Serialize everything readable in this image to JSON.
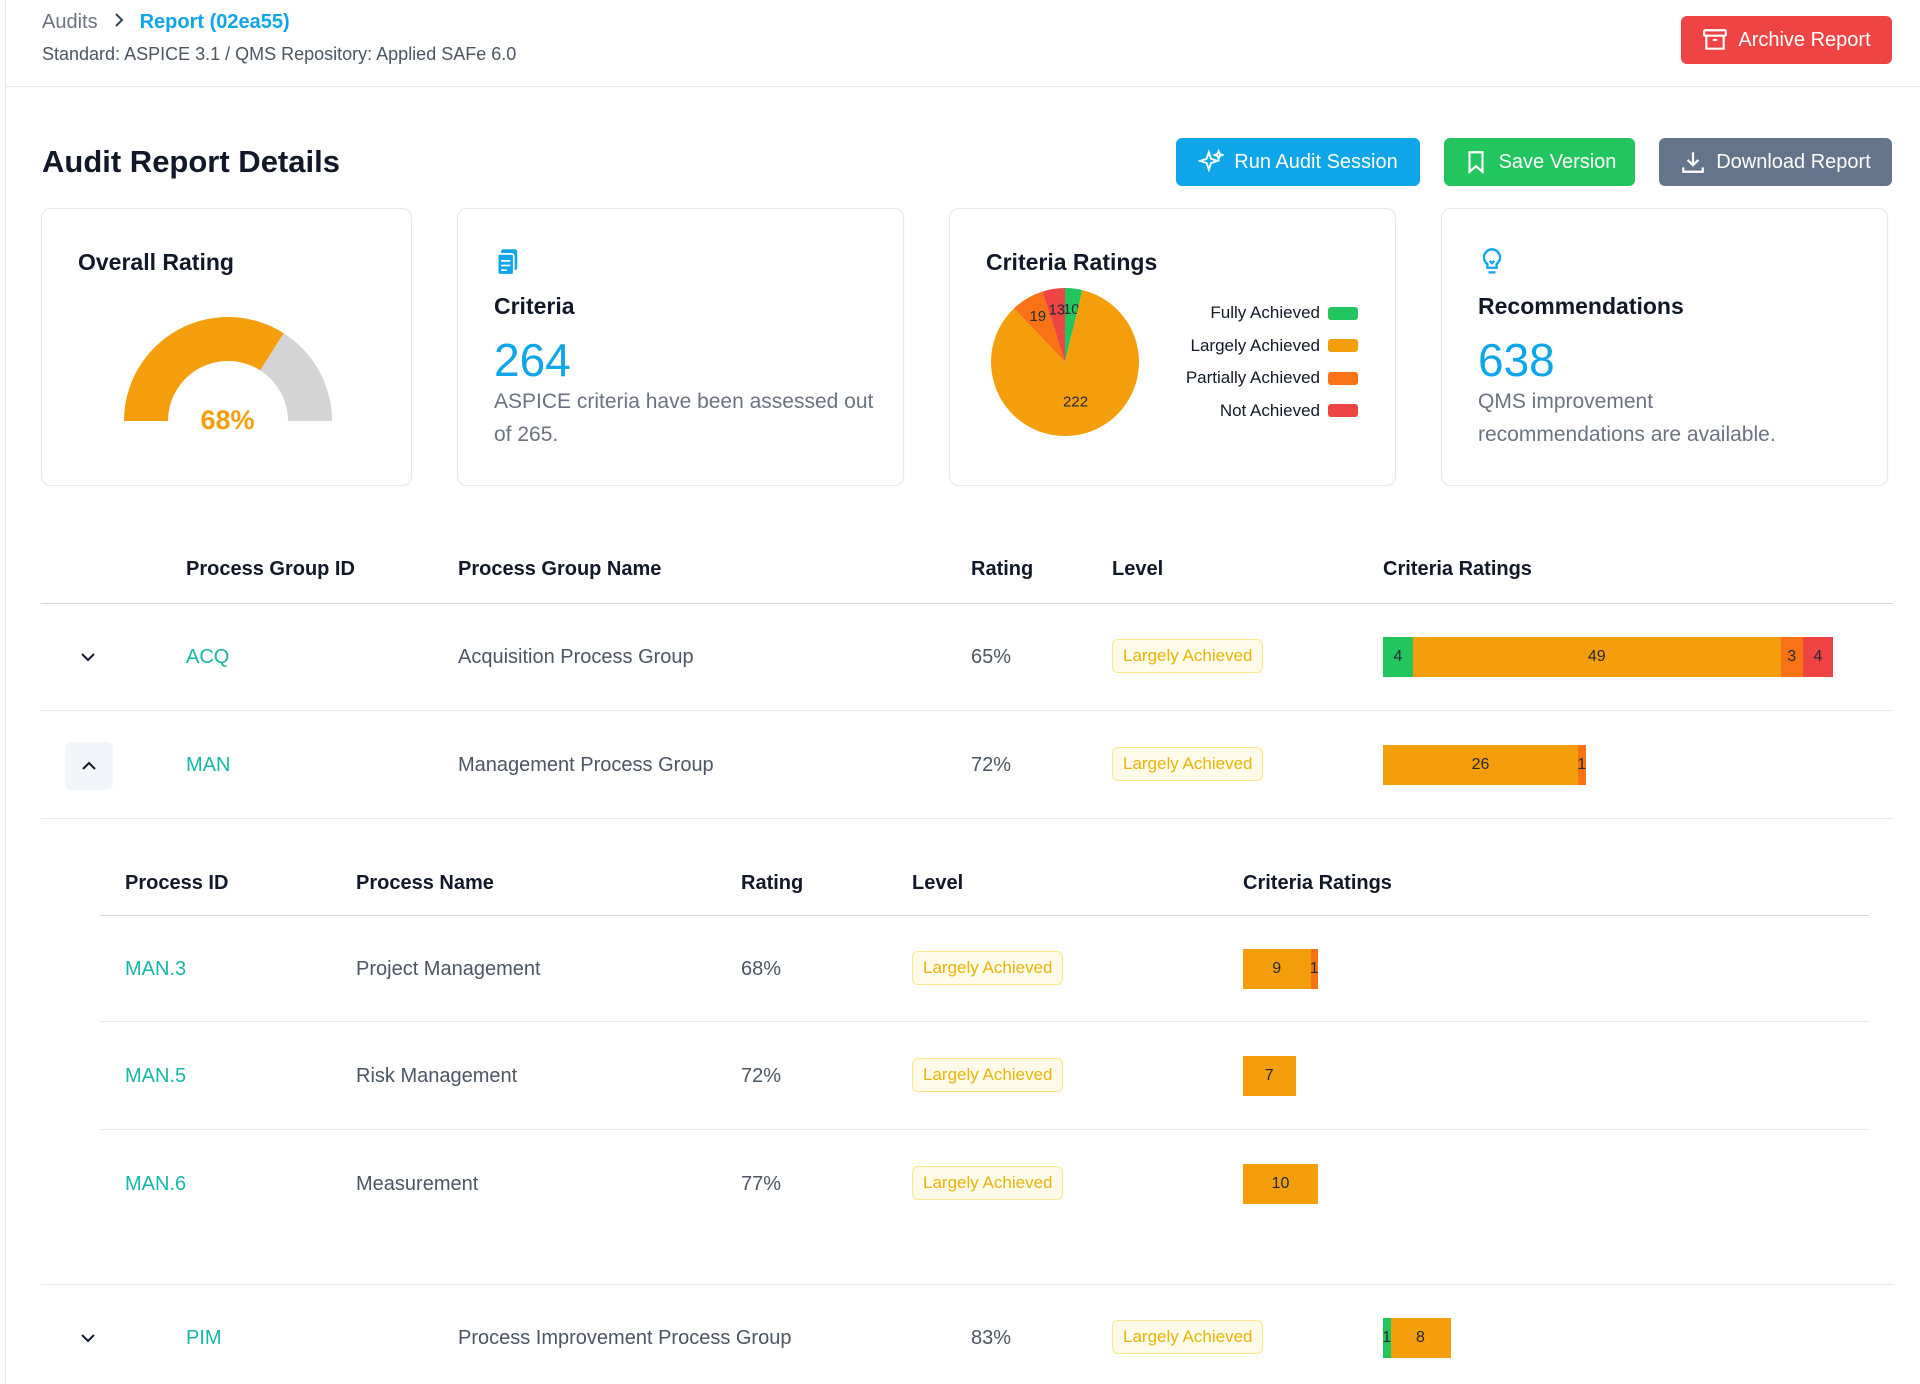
{
  "breadcrumb": {
    "home": "Audits",
    "separator": ">",
    "current": "Report (02ea55)"
  },
  "subtitle": "Standard: ASPICE 3.1 / QMS Repository: Applied SAFe 6.0",
  "buttons": {
    "archive": "Archive Report",
    "run": "Run Audit Session",
    "save": "Save Version",
    "download": "Download Report"
  },
  "page_title": "Audit Report Details",
  "colors": {
    "fully": "#22c55e",
    "largely": "#f59e0b",
    "partially": "#f97316",
    "not": "#ef4444",
    "accent": "#0ea5e9"
  },
  "cards": {
    "overall": {
      "title": "Overall Rating",
      "value": 68,
      "value_label": "68%"
    },
    "criteria": {
      "icon": "clipboard-icon",
      "title": "Criteria",
      "value": "264",
      "description": "ASPICE criteria have been assessed out of 265."
    },
    "ratings": {
      "title": "Criteria Ratings",
      "slices": [
        {
          "name": "Fully Achieved",
          "value": 10,
          "label": "10",
          "color_key": "fully"
        },
        {
          "name": "Largely Achieved",
          "value": 222,
          "label": "222",
          "color_key": "largely"
        },
        {
          "name": "Partially Achieved",
          "value": 19,
          "label": "19",
          "color_key": "partially"
        },
        {
          "name": "Not Achieved",
          "value": 13,
          "label": "13",
          "color_key": "not"
        }
      ]
    },
    "recommendations": {
      "icon": "lightbulb-icon",
      "title": "Recommendations",
      "value": "638",
      "description": "QMS improvement recommendations are available."
    }
  },
  "table": {
    "headers": {
      "id": "Process Group ID",
      "name": "Process Group Name",
      "rating": "Rating",
      "level": "Level",
      "criteria": "Criteria Ratings"
    },
    "groups": [
      {
        "id": "ACQ",
        "name": "Acquisition Process Group",
        "rating": "65%",
        "level": "Largely Achieved",
        "expanded": false,
        "bar": {
          "fully": 4,
          "largely": 49,
          "partially": 3,
          "not": 4
        }
      },
      {
        "id": "MAN",
        "name": "Management Process Group",
        "rating": "72%",
        "level": "Largely Achieved",
        "expanded": true,
        "bar": {
          "fully": 0,
          "largely": 26,
          "partially": 1,
          "not": 0
        }
      },
      {
        "id": "PIM",
        "name": "Process Improvement Process Group",
        "rating": "83%",
        "level": "Largely Achieved",
        "expanded": false,
        "bar": {
          "fully": 1,
          "largely": 8,
          "partially": 0,
          "not": 0
        }
      }
    ],
    "sub_headers": {
      "id": "Process ID",
      "name": "Process Name",
      "rating": "Rating",
      "level": "Level",
      "criteria": "Criteria Ratings"
    },
    "processes": [
      {
        "id": "MAN.3",
        "name": "Project Management",
        "rating": "68%",
        "level": "Largely Achieved",
        "bar": {
          "fully": 0,
          "largely": 9,
          "partially": 1,
          "not": 0
        }
      },
      {
        "id": "MAN.5",
        "name": "Risk Management",
        "rating": "72%",
        "level": "Largely Achieved",
        "bar": {
          "fully": 0,
          "largely": 7,
          "partially": 0,
          "not": 0
        }
      },
      {
        "id": "MAN.6",
        "name": "Measurement",
        "rating": "77%",
        "level": "Largely Achieved",
        "bar": {
          "fully": 0,
          "largely": 10,
          "partially": 0,
          "not": 0
        }
      }
    ]
  }
}
